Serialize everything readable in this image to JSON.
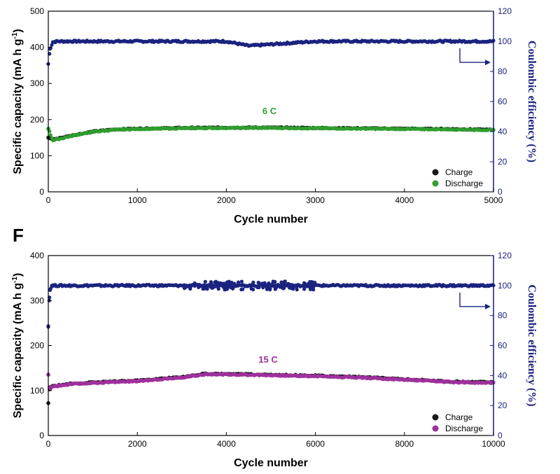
{
  "chart_data": [
    {
      "type": "scatter",
      "panel": "",
      "xlabel": "Cycle number",
      "ylabel": "Specific capacity (mA h g-1)",
      "y2label": "Coulombic efficiency (%)",
      "xlim": [
        0,
        5000
      ],
      "ylim": [
        0,
        500
      ],
      "y2lim": [
        0,
        120
      ],
      "xticks": [
        "0",
        "1000",
        "2000",
        "3000",
        "4000",
        "5000"
      ],
      "yticks": [
        "0",
        "100",
        "200",
        "300",
        "400",
        "500"
      ],
      "y2ticks": [
        "0",
        "20",
        "40",
        "60",
        "80",
        "100",
        "120"
      ],
      "annotation": "6 C",
      "grid": false,
      "legend_position": "bottom-right",
      "colors": {
        "charge": "#1a1a1a",
        "discharge": "#2e9e2e",
        "efficiency": "#1a237e"
      },
      "series": [
        {
          "name": "Charge",
          "axis": "left",
          "x": [
            0,
            50,
            150,
            300,
            500,
            750,
            1000,
            1500,
            2000,
            2500,
            3000,
            3500,
            4000,
            4500,
            5000
          ],
          "y": [
            150,
            145,
            150,
            158,
            167,
            173,
            175,
            177,
            178,
            178,
            177,
            176,
            175,
            174,
            172
          ]
        },
        {
          "name": "Discharge",
          "axis": "left",
          "x": [
            0,
            50,
            150,
            300,
            500,
            750,
            1000,
            1500,
            2000,
            2500,
            3000,
            3500,
            4000,
            4500,
            5000
          ],
          "y": [
            175,
            143,
            148,
            157,
            166,
            172,
            174,
            176,
            177,
            177,
            176,
            175,
            174,
            173,
            171
          ]
        },
        {
          "name": "",
          "axis": "right",
          "x": [
            0,
            20,
            50,
            100,
            500,
            1000,
            2000,
            2250,
            3000,
            4000,
            5000
          ],
          "y": [
            85,
            95,
            99.5,
            100,
            100,
            100,
            100,
            97,
            100,
            100,
            100
          ]
        }
      ]
    },
    {
      "type": "scatter",
      "panel": "F",
      "xlabel": "Cycle number",
      "ylabel": "Specific capacity (mA h g-1)",
      "y2label": "Coulombic efficiency (%)",
      "xlim": [
        0,
        10000
      ],
      "ylim": [
        0,
        400
      ],
      "y2lim": [
        0,
        120
      ],
      "xticks": [
        "0",
        "2000",
        "4000",
        "6000",
        "8000",
        "10000"
      ],
      "yticks": [
        "0",
        "100",
        "200",
        "300",
        "400"
      ],
      "y2ticks": [
        "0",
        "20",
        "40",
        "60",
        "80",
        "100",
        "120"
      ],
      "annotation": "15 C",
      "grid": false,
      "legend_position": "bottom-right",
      "colors": {
        "charge": "#1a1a1a",
        "discharge": "#a0309e",
        "efficiency": "#1a237e"
      },
      "series": [
        {
          "name": "Charge",
          "axis": "left",
          "x": [
            0,
            30,
            100,
            500,
            1000,
            2000,
            3000,
            3500,
            4000,
            5000,
            6000,
            7000,
            8000,
            9000,
            10000
          ],
          "y": [
            72,
            105,
            110,
            115,
            118,
            122,
            130,
            137,
            137,
            135,
            133,
            130,
            125,
            120,
            118
          ]
        },
        {
          "name": "Discharge",
          "axis": "left",
          "x": [
            0,
            30,
            100,
            500,
            1000,
            2000,
            3000,
            3500,
            4000,
            5000,
            6000,
            7000,
            8000,
            9000,
            10000
          ],
          "y": [
            135,
            104,
            109,
            114,
            117,
            121,
            129,
            136,
            136,
            134,
            132,
            129,
            124,
            119,
            117
          ]
        },
        {
          "name": "",
          "axis": "right",
          "x": [
            0,
            20,
            40,
            80,
            500,
            1000,
            2000,
            3000,
            4000,
            5000,
            6000,
            7000,
            8000,
            9000,
            10000
          ],
          "y": [
            73,
            90,
            97,
            100,
            100,
            100,
            100,
            100,
            100,
            100,
            100,
            100,
            100,
            100,
            100
          ]
        }
      ]
    }
  ],
  "legend": {
    "charge": "Charge",
    "discharge": "Discharge"
  }
}
